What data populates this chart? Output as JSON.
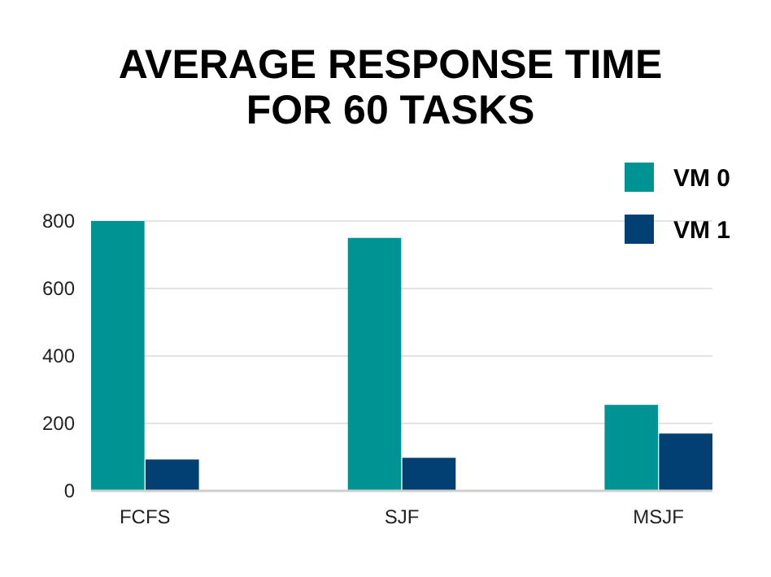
{
  "chart_data": {
    "type": "bar",
    "title": "AVERAGE RESPONSE TIME\nFOR 60 TASKS",
    "categories": [
      "FCFS",
      "SJF",
      "MSJF"
    ],
    "series": [
      {
        "name": "VM 0",
        "color": "#009394",
        "values": [
          800,
          750,
          255
        ]
      },
      {
        "name": "VM 1",
        "color": "#023f72",
        "values": [
          93,
          98,
          170
        ]
      }
    ],
    "ylim": [
      0,
      800
    ],
    "yticks": [
      0,
      200,
      400,
      600,
      800
    ],
    "grid": "y",
    "legend": "top right"
  }
}
